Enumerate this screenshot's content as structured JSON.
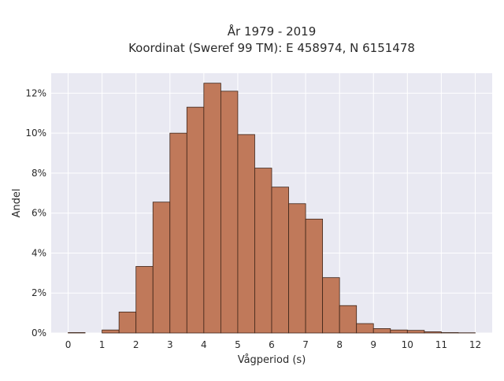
{
  "chart_data": {
    "type": "bar",
    "title": "År 1979 - 2019",
    "subtitle": "Koordinat (Sweref 99 TM): E 458974, N 6151478",
    "xlabel": "Vågperiod (s)",
    "ylabel": "Andel",
    "xlim": [
      -0.5,
      12.5
    ],
    "ylim": [
      0,
      13
    ],
    "x_ticks": [
      0,
      1,
      2,
      3,
      4,
      5,
      6,
      7,
      8,
      9,
      10,
      11,
      12
    ],
    "x_tick_labels": [
      "0",
      "1",
      "2",
      "3",
      "4",
      "5",
      "6",
      "7",
      "8",
      "9",
      "10",
      "11",
      "12"
    ],
    "y_ticks": [
      0,
      2,
      4,
      6,
      8,
      10,
      12
    ],
    "y_tick_labels": [
      "0%",
      "2%",
      "4%",
      "6%",
      "8%",
      "10%",
      "12%"
    ],
    "grid": true,
    "bin_width": 0.5,
    "bins": [
      {
        "start": 0.0,
        "value": 0.02
      },
      {
        "start": 0.5,
        "value": 0.0
      },
      {
        "start": 1.0,
        "value": 0.15
      },
      {
        "start": 1.5,
        "value": 1.05
      },
      {
        "start": 2.0,
        "value": 3.33
      },
      {
        "start": 2.5,
        "value": 6.55
      },
      {
        "start": 3.0,
        "value": 10.0
      },
      {
        "start": 3.5,
        "value": 11.3
      },
      {
        "start": 4.0,
        "value": 12.5
      },
      {
        "start": 4.5,
        "value": 12.1
      },
      {
        "start": 5.0,
        "value": 9.93
      },
      {
        "start": 5.5,
        "value": 8.25
      },
      {
        "start": 6.0,
        "value": 7.3
      },
      {
        "start": 6.5,
        "value": 6.47
      },
      {
        "start": 7.0,
        "value": 5.7
      },
      {
        "start": 7.5,
        "value": 2.77
      },
      {
        "start": 8.0,
        "value": 1.37
      },
      {
        "start": 8.5,
        "value": 0.47
      },
      {
        "start": 9.0,
        "value": 0.22
      },
      {
        "start": 9.5,
        "value": 0.15
      },
      {
        "start": 10.0,
        "value": 0.13
      },
      {
        "start": 10.5,
        "value": 0.06
      },
      {
        "start": 11.0,
        "value": 0.02
      },
      {
        "start": 11.5,
        "value": 0.01
      }
    ],
    "colors": {
      "bar_fill": "#c0795a",
      "bar_edge": "#3d2418",
      "plot_background": "#e9e9f2",
      "grid": "#ffffff"
    }
  }
}
